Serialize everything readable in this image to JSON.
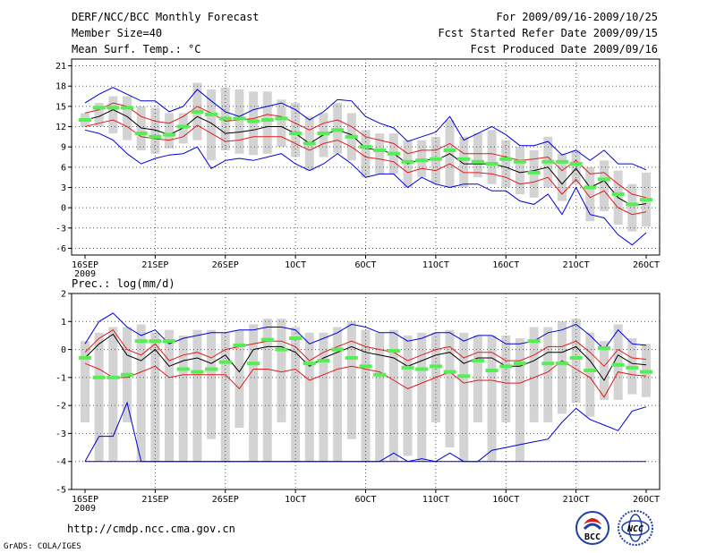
{
  "header": {
    "title": "DERF/NCC/BCC Monthly Forecast",
    "member_size": "Member Size=40",
    "variable": "Mean Surf. Temp.: °C",
    "period": "For 2009/09/16-2009/10/25",
    "started": "Fcst Started Refer Date 2009/09/15",
    "produced": "Fcst Produced Date 2009/09/16"
  },
  "footer": {
    "url": "http://cmdp.ncc.cma.gov.cn",
    "grads": "GrADS: COLA/IGES",
    "logo1_text": "BCC",
    "logo2_text": "NCC"
  },
  "colors": {
    "bar": "#d3d3d3",
    "median": "#55ee55",
    "mean": "#000000",
    "spread": "#e31a1c",
    "envelope": "#0000dd",
    "grid": "#555555"
  },
  "chart_data": [
    {
      "type": "line",
      "title": "Mean Surf. Temp.: °C",
      "x_tick_labels": [
        "16SEP",
        "21SEP",
        "26SEP",
        "1OCT",
        "6OCT",
        "11OCT",
        "16OCT",
        "21OCT",
        "26OCT"
      ],
      "x_sub_label": "2009",
      "x_start_day": 1,
      "x_end_day": 41,
      "ylim": [
        -7,
        22
      ],
      "y_ticks": [
        -6,
        -3,
        0,
        3,
        6,
        9,
        12,
        15,
        18,
        21
      ],
      "series": {
        "max": [
          15.5,
          16.8,
          17.8,
          16.8,
          15.8,
          15.8,
          14.2,
          15.0,
          17.5,
          15.8,
          14.2,
          13.5,
          14.5,
          15.0,
          15.5,
          14.5,
          13.0,
          14.2,
          16.0,
          15.8,
          13.5,
          12.5,
          11.8,
          9.8,
          10.5,
          11.2,
          13.5,
          10.0,
          11.0,
          12.0,
          10.8,
          9.2,
          9.2,
          9.8,
          7.8,
          8.5,
          7.0,
          8.5,
          6.5,
          6.5,
          5.6
        ],
        "p75": [
          14.0,
          14.5,
          15.5,
          15.0,
          13.5,
          12.8,
          12.5,
          13.5,
          15.0,
          14.0,
          12.8,
          13.0,
          13.2,
          13.8,
          13.5,
          12.5,
          11.5,
          12.5,
          13.0,
          12.0,
          10.5,
          10.0,
          9.5,
          8.0,
          8.5,
          8.5,
          9.5,
          8.0,
          8.0,
          8.0,
          7.5,
          7.0,
          7.2,
          7.5,
          5.5,
          7.0,
          5.0,
          5.2,
          3.5,
          2.0,
          1.5
        ],
        "mean": [
          13.0,
          13.5,
          14.5,
          13.5,
          11.8,
          11.5,
          10.8,
          11.8,
          13.5,
          12.5,
          11.0,
          11.2,
          11.5,
          12.0,
          12.0,
          11.0,
          9.5,
          10.8,
          11.5,
          10.8,
          8.8,
          8.5,
          8.0,
          6.5,
          7.2,
          7.0,
          8.0,
          6.5,
          6.5,
          6.5,
          6.0,
          5.2,
          5.5,
          6.0,
          3.5,
          5.8,
          3.0,
          4.0,
          1.5,
          0.3,
          0.6
        ],
        "p25": [
          12.0,
          12.5,
          13.0,
          12.0,
          10.5,
          10.2,
          10.0,
          10.5,
          12.2,
          11.0,
          9.8,
          10.0,
          10.5,
          10.5,
          10.5,
          9.5,
          8.5,
          9.5,
          10.0,
          9.0,
          7.5,
          7.2,
          6.8,
          5.2,
          5.8,
          5.5,
          6.5,
          5.2,
          5.2,
          5.0,
          4.5,
          3.5,
          3.8,
          4.5,
          2.0,
          4.2,
          1.5,
          2.5,
          0.0,
          -1.0,
          -0.6
        ],
        "min": [
          11.5,
          11.0,
          10.0,
          8.0,
          6.5,
          7.3,
          7.8,
          8.0,
          9.0,
          5.8,
          7.0,
          7.3,
          7.0,
          7.5,
          8.0,
          6.5,
          5.5,
          6.5,
          8.0,
          6.5,
          4.5,
          5.0,
          5.0,
          3.0,
          4.5,
          3.5,
          3.0,
          3.5,
          3.5,
          2.5,
          2.5,
          1.0,
          0.5,
          2.0,
          -1.0,
          3.0,
          -1.0,
          -1.5,
          -4.0,
          -5.5,
          -3.7
        ],
        "median": [
          13.0,
          14.8,
          14.8,
          14.8,
          11.0,
          10.5,
          10.8,
          12.0,
          14.2,
          13.8,
          13.2,
          13.2,
          12.8,
          13.0,
          13.2,
          11.0,
          9.5,
          11.0,
          11.5,
          10.5,
          9.0,
          8.5,
          8.0,
          6.8,
          7.0,
          7.2,
          8.5,
          7.2,
          6.8,
          6.5,
          7.2,
          6.8,
          5.2,
          6.8,
          6.8,
          6.5,
          3.0,
          4.2,
          2.0,
          0.5,
          1.2
        ],
        "bar_top": [
          14.0,
          15.5,
          16.5,
          16.5,
          15.0,
          14.8,
          14.0,
          14.0,
          18.5,
          17.5,
          17.8,
          17.5,
          17.2,
          17.2,
          16.0,
          15.5,
          13.5,
          14.0,
          15.5,
          14.0,
          11.5,
          11.0,
          11.0,
          10.0,
          10.0,
          10.5,
          13.0,
          10.5,
          11.0,
          11.5,
          10.0,
          9.0,
          8.5,
          10.5,
          8.0,
          8.5,
          6.0,
          7.0,
          5.5,
          3.5,
          5.2
        ],
        "bar_bottom": [
          12.0,
          12.0,
          11.0,
          10.0,
          8.5,
          8.0,
          8.8,
          9.5,
          10.0,
          7.0,
          8.5,
          8.0,
          7.8,
          8.0,
          9.0,
          7.5,
          5.5,
          7.5,
          8.0,
          7.0,
          4.5,
          5.0,
          5.0,
          3.0,
          4.5,
          3.5,
          3.0,
          3.0,
          4.5,
          3.5,
          3.0,
          2.0,
          1.5,
          3.0,
          1.0,
          3.5,
          -2.0,
          -0.5,
          -2.5,
          -3.5,
          -2.8
        ]
      }
    },
    {
      "type": "line",
      "title": "Prec.: log(mm/d)",
      "x_tick_labels": [
        "16SEP",
        "21SEP",
        "26SEP",
        "1OCT",
        "6OCT",
        "11OCT",
        "16OCT",
        "21OCT",
        "26OCT"
      ],
      "x_sub_label": "2009",
      "x_start_day": 1,
      "x_end_day": 41,
      "ylim": [
        -5,
        2
      ],
      "y_ticks": [
        -5,
        -4,
        -3,
        -2,
        -1,
        0,
        1,
        2
      ],
      "series": {
        "max": [
          0.2,
          1.0,
          1.3,
          0.8,
          0.5,
          0.7,
          0.2,
          0.4,
          0.5,
          0.6,
          0.6,
          0.7,
          0.7,
          0.8,
          0.8,
          0.7,
          0.2,
          0.4,
          0.6,
          0.9,
          0.8,
          0.6,
          0.6,
          0.3,
          0.4,
          0.6,
          0.6,
          0.3,
          0.5,
          0.5,
          0.2,
          0.2,
          0.3,
          0.6,
          0.7,
          0.9,
          0.5,
          0.0,
          0.7,
          0.2,
          0.15
        ],
        "p75": [
          -0.1,
          0.4,
          0.7,
          0.0,
          -0.2,
          0.2,
          -0.4,
          -0.2,
          -0.1,
          -0.3,
          0.0,
          0.1,
          0.2,
          0.3,
          0.3,
          0.1,
          -0.4,
          -0.1,
          0.1,
          0.3,
          0.1,
          0.0,
          -0.1,
          -0.4,
          -0.2,
          0.0,
          0.1,
          -0.3,
          -0.1,
          -0.1,
          -0.4,
          -0.4,
          -0.2,
          0.1,
          0.1,
          0.3,
          -0.1,
          -0.6,
          0.0,
          -0.3,
          -0.35
        ],
        "mean": [
          -0.3,
          0.2,
          0.55,
          -0.2,
          -0.4,
          0.0,
          -0.6,
          -0.4,
          -0.3,
          -0.5,
          -0.2,
          -0.8,
          0.0,
          0.1,
          0.1,
          -0.1,
          -0.6,
          -0.3,
          -0.1,
          0.1,
          -0.1,
          -0.2,
          -0.3,
          -0.6,
          -0.4,
          -0.2,
          -0.1,
          -0.5,
          -0.3,
          -0.3,
          -0.6,
          -0.6,
          -0.4,
          -0.1,
          -0.1,
          0.1,
          -0.4,
          -1.1,
          -0.2,
          -0.5,
          -0.55
        ],
        "p25": [
          -0.5,
          -0.7,
          -1.0,
          -1.0,
          -0.8,
          -0.6,
          -1.0,
          -0.9,
          -0.9,
          -0.9,
          -0.9,
          -1.4,
          -0.7,
          -0.7,
          -0.8,
          -0.7,
          -1.1,
          -0.9,
          -0.7,
          -0.6,
          -0.7,
          -0.8,
          -1.1,
          -1.4,
          -1.2,
          -1.0,
          -0.8,
          -1.2,
          -1.1,
          -1.1,
          -1.2,
          -1.2,
          -1.0,
          -0.8,
          -0.4,
          -0.7,
          -1.0,
          -1.7,
          -0.8,
          -0.9,
          -0.95
        ],
        "min": [
          -4.0,
          -3.1,
          -3.1,
          -1.9,
          -4.0,
          -4.0,
          -4.0,
          -4.0,
          -4.0,
          -4.0,
          -4.0,
          -4.0,
          -4.0,
          -4.0,
          -4.0,
          -4.0,
          -4.0,
          -4.0,
          -4.0,
          -4.0,
          -4.0,
          -4.0,
          -3.7,
          -4.0,
          -3.9,
          -4.0,
          -3.7,
          -4.0,
          -4.0,
          -3.6,
          -3.5,
          -3.4,
          -3.3,
          -3.2,
          -2.6,
          -2.1,
          -2.5,
          -2.7,
          -2.9,
          -2.2,
          -2.05
        ],
        "median": [
          -0.3,
          -1.0,
          -1.0,
          -0.9,
          0.3,
          0.3,
          0.3,
          -0.7,
          -0.8,
          -0.7,
          -0.45,
          0.15,
          -0.5,
          0.35,
          0.0,
          0.4,
          -0.5,
          -0.4,
          0.0,
          -0.3,
          -0.6,
          -0.9,
          -0.05,
          -0.65,
          -0.7,
          -0.6,
          -0.8,
          -0.95,
          -0.4,
          -0.75,
          -0.6,
          -0.5,
          0.3,
          -0.5,
          -0.5,
          -0.3,
          -0.75,
          0.05,
          -0.55,
          -0.65,
          -0.8
        ],
        "bar_top": [
          0.3,
          0.6,
          0.8,
          0.8,
          0.9,
          0.6,
          0.7,
          0.5,
          0.7,
          0.7,
          0.6,
          0.7,
          0.9,
          1.1,
          1.1,
          0.8,
          0.6,
          0.6,
          0.8,
          1.0,
          0.7,
          0.6,
          0.7,
          0.5,
          0.6,
          0.6,
          0.7,
          0.6,
          0.5,
          0.5,
          0.5,
          0.4,
          0.8,
          0.8,
          1.0,
          1.1,
          0.6,
          0.3,
          0.9,
          0.4,
          0.2
        ],
        "bar_bottom": [
          -2.6,
          -4.0,
          -4.0,
          -2.6,
          -4.0,
          -4.0,
          -4.0,
          -4.0,
          -4.0,
          -3.2,
          -4.0,
          -2.8,
          -4.0,
          -4.0,
          -2.6,
          -4.0,
          -4.0,
          -4.0,
          -4.0,
          -3.2,
          -4.0,
          -4.0,
          -4.0,
          -3.8,
          -4.0,
          -2.6,
          -3.5,
          -4.0,
          -2.6,
          -4.0,
          -2.6,
          -4.0,
          -2.6,
          -2.6,
          -2.3,
          -1.9,
          -2.4,
          -1.8,
          -1.8,
          -1.6,
          -1.7
        ]
      }
    }
  ]
}
